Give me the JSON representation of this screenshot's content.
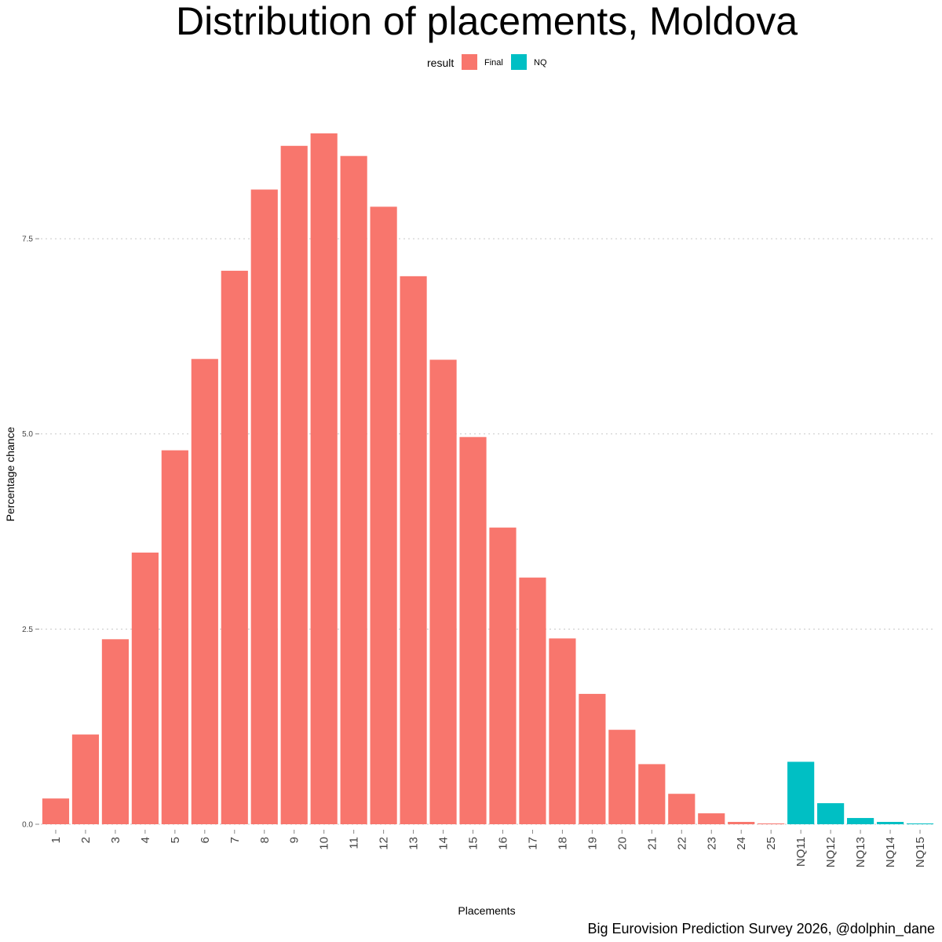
{
  "chart_data": {
    "type": "bar",
    "title": "Distribution of placements, Moldova",
    "xlabel": "Placements",
    "ylabel": "Percentage chance",
    "caption": "Big Eurovision Prediction Survey 2026, @dolphin_dane",
    "legend": {
      "title": "result",
      "entries": [
        {
          "name": "Final",
          "color": "#F8766D"
        },
        {
          "name": "NQ",
          "color": "#00BFC4"
        }
      ]
    },
    "ylim": [
      0,
      9.1
    ],
    "yticks": [
      {
        "value": 0,
        "label": "0.0"
      },
      {
        "value": 2.5,
        "label": "2.5"
      },
      {
        "value": 5,
        "label": "5.0"
      },
      {
        "value": 7.5,
        "label": "7.5"
      }
    ],
    "categories": [
      "1",
      "2",
      "3",
      "4",
      "5",
      "6",
      "7",
      "8",
      "9",
      "10",
      "11",
      "12",
      "13",
      "14",
      "15",
      "16",
      "17",
      "18",
      "19",
      "20",
      "21",
      "22",
      "23",
      "24",
      "25",
      "NQ11",
      "NQ12",
      "NQ13",
      "NQ14",
      "NQ15"
    ],
    "groups": [
      "Final",
      "Final",
      "Final",
      "Final",
      "Final",
      "Final",
      "Final",
      "Final",
      "Final",
      "Final",
      "Final",
      "Final",
      "Final",
      "Final",
      "Final",
      "Final",
      "Final",
      "Final",
      "Final",
      "Final",
      "Final",
      "Final",
      "Final",
      "Final",
      "Final",
      "NQ",
      "NQ",
      "NQ",
      "NQ",
      "NQ"
    ],
    "values": [
      0.33,
      1.15,
      2.37,
      3.48,
      4.79,
      5.96,
      7.09,
      8.13,
      8.69,
      8.85,
      8.56,
      7.91,
      7.02,
      5.95,
      4.96,
      3.8,
      3.16,
      2.38,
      1.67,
      1.21,
      0.77,
      0.39,
      0.14,
      0.03,
      0.01,
      0.8,
      0.27,
      0.08,
      0.03,
      0.01
    ]
  }
}
